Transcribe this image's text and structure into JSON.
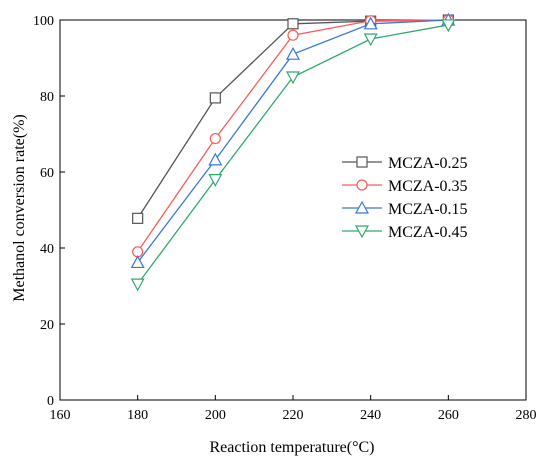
{
  "chart_data": {
    "type": "line",
    "xlabel": "Reaction temperature(°C)",
    "ylabel": "Methanol conversion rate(%)",
    "xlim": [
      160,
      280
    ],
    "ylim": [
      0,
      100
    ],
    "x_ticks": [
      160,
      180,
      200,
      220,
      240,
      260,
      280
    ],
    "x_tick_labels": [
      "160",
      "180",
      "200",
      "220",
      "240",
      "260",
      "280"
    ],
    "y_ticks": [
      0,
      20,
      40,
      60,
      80,
      100
    ],
    "y_tick_labels": [
      "0",
      "20",
      "40",
      "60",
      "80",
      "100"
    ],
    "grid": false,
    "legend_position": "center-right",
    "x": [
      180,
      200,
      220,
      240,
      260
    ],
    "series": [
      {
        "name": "MCZA-0.25",
        "values": [
          47.8,
          79.5,
          99.0,
          99.7,
          100.0
        ],
        "color": "#555555",
        "marker": "square"
      },
      {
        "name": "MCZA-0.35",
        "values": [
          39.0,
          68.8,
          96.0,
          99.8,
          100.0
        ],
        "color": "#ff5a5a",
        "marker": "circle"
      },
      {
        "name": "MCZA-0.15",
        "values": [
          36.2,
          63.2,
          91.0,
          99.0,
          100.0
        ],
        "color": "#3a78d8",
        "marker": "triangle-up"
      },
      {
        "name": "MCZA-0.45",
        "values": [
          30.5,
          58.0,
          85.0,
          95.0,
          98.7
        ],
        "color": "#2eaa6c",
        "marker": "triangle-down"
      }
    ]
  }
}
